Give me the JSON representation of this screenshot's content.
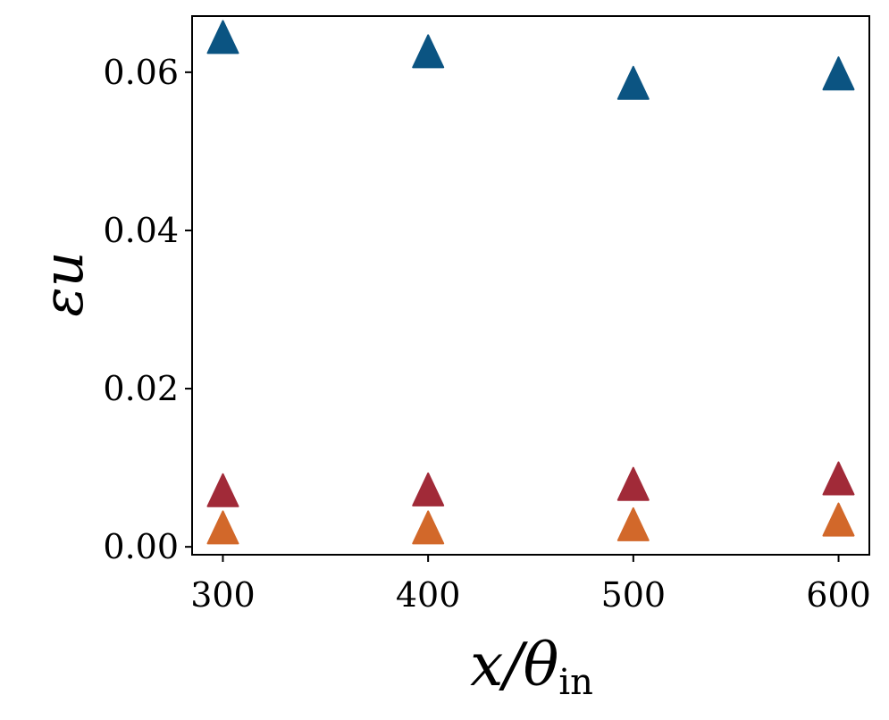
{
  "chart_data": {
    "type": "scatter",
    "marker": "triangle-up",
    "title": "",
    "xlabel": {
      "base": "x/θ",
      "subscript": "in"
    },
    "ylabel": {
      "base": "ε",
      "subscript": "u"
    },
    "x": [
      300,
      400,
      500,
      600
    ],
    "series": [
      {
        "color": "#0b5482",
        "values": [
          0.064,
          0.0622,
          0.0582,
          0.0594
        ]
      },
      {
        "color": "#a12a38",
        "values": [
          0.0067,
          0.0068,
          0.0075,
          0.0082
        ]
      },
      {
        "color": "#d2682a",
        "values": [
          0.002,
          0.002,
          0.0024,
          0.003
        ]
      }
    ],
    "xlim": [
      285,
      615
    ],
    "ylim": [
      -0.001,
      0.0671
    ],
    "xticks": [
      300,
      400,
      500,
      600
    ],
    "xtick_labels": [
      "300",
      "400",
      "500",
      "600"
    ],
    "yticks": [
      0.0,
      0.02,
      0.04,
      0.06
    ],
    "ytick_labels": [
      "0.00",
      "0.02",
      "0.04",
      "0.06"
    ],
    "grid": false,
    "legend": "none"
  }
}
